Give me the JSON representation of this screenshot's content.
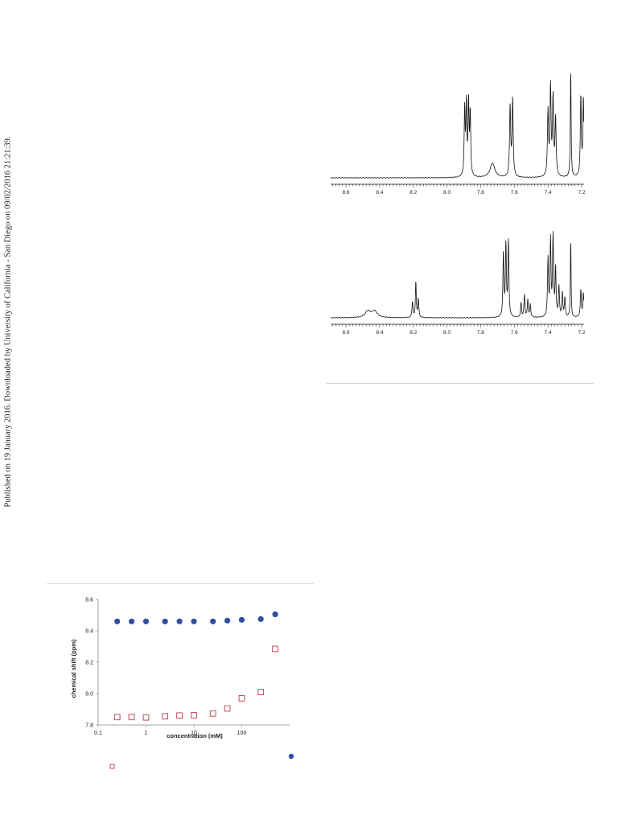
{
  "sidebar_notice": "Published on 19 January 2016. Downloaded by University of California - San Diego on 09/02/2016 21:21:39.",
  "spectrum_top": {
    "ticks": [
      "8.6",
      "8.4",
      "8.2",
      "8.0",
      "7.8",
      "7.6",
      "7.4",
      "7.2"
    ]
  },
  "spectrum_bottom": {
    "ticks": [
      "8.6",
      "8.4",
      "8.2",
      "8.0",
      "7.8",
      "7.6",
      "7.4",
      "7.2"
    ]
  },
  "chart_data": {
    "type": "scatter",
    "xlabel": "concentration (mM)",
    "ylabel": "chemical shift (ppm)",
    "xscale": "log",
    "xlim": [
      0.1,
      1000
    ],
    "ylim": [
      7.8,
      8.6
    ],
    "xtick_labels": [
      "0.1",
      "1",
      "10",
      "100"
    ],
    "ytick_labels": [
      "8.6",
      "8.4",
      "8.2",
      "8.0",
      "7.8"
    ],
    "series": [
      {
        "marker": "filled-circle",
        "color": "#2f4fa0",
        "points": [
          [
            0.25,
            8.46
          ],
          [
            0.5,
            8.46
          ],
          [
            1,
            8.46
          ],
          [
            2.5,
            8.46
          ],
          [
            5,
            8.46
          ],
          [
            10,
            8.46
          ],
          [
            25,
            8.46
          ],
          [
            50,
            8.465
          ],
          [
            100,
            8.47
          ],
          [
            250,
            8.475
          ],
          [
            500,
            8.505
          ]
        ]
      },
      {
        "marker": "open-square",
        "color": "#c0394b",
        "points": [
          [
            0.25,
            7.85
          ],
          [
            0.5,
            7.85
          ],
          [
            1,
            7.848
          ],
          [
            2.5,
            7.855
          ],
          [
            5,
            7.86
          ],
          [
            10,
            7.862
          ],
          [
            25,
            7.873
          ],
          [
            50,
            7.905
          ],
          [
            100,
            7.97
          ],
          [
            250,
            8.01
          ],
          [
            500,
            8.285
          ]
        ]
      }
    ]
  }
}
